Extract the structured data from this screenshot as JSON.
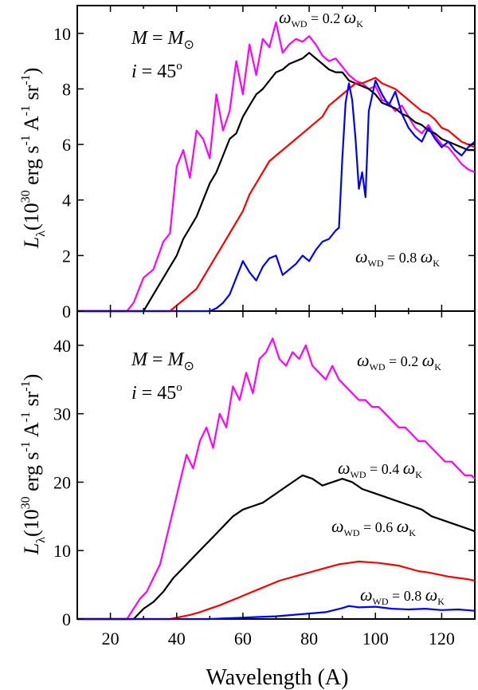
{
  "chart_data": [
    {
      "type": "line",
      "panel": "top",
      "ylabel_main": "L",
      "ylabel_sub": "λ",
      "ylabel_unit": "(10",
      "ylabel_unit_exp": "30",
      "ylabel_unit_rest": " erg s",
      "ylabel_unit_exp2": "-1",
      "ylabel_unit_rest2": " A",
      "ylabel_unit_exp3": "-1",
      "ylabel_unit_rest3": " sr",
      "ylabel_unit_exp4": "-1",
      "ylabel_unit_close": ")",
      "xlim": [
        10,
        130
      ],
      "ylim": [
        0,
        11
      ],
      "yticks": [
        "0",
        "2",
        "4",
        "6",
        "8",
        "10"
      ],
      "annotations": {
        "mass_left": "M",
        "mass_eq": " = ",
        "mass_right": "M",
        "mass_sub": "⊙",
        "incl_left": "i",
        "incl_eq": " = 45",
        "incl_sup": "o"
      },
      "labels": [
        {
          "omega": "ω",
          "sub": "WD",
          "text": " = 0.2 ",
          "omega2": "ω",
          "sub2": "K"
        },
        {
          "omega": "ω",
          "sub": "WD",
          "text": " = 0.8 ",
          "omega2": "ω",
          "sub2": "K"
        }
      ],
      "series": [
        {
          "name": "ω_WD = 0.2 ω_K",
          "color": "#ff00ff",
          "x": [
            10,
            25,
            27,
            30,
            33,
            36,
            38,
            40,
            42,
            44,
            46,
            48,
            50,
            52,
            54,
            56,
            58,
            60,
            62,
            64,
            66,
            68,
            70,
            72,
            74,
            76,
            78,
            80,
            82,
            84,
            86,
            88,
            90,
            92,
            94,
            96,
            98,
            100,
            102,
            104,
            106,
            108,
            110,
            112,
            114,
            116,
            118,
            120,
            122,
            124,
            126,
            128,
            130
          ],
          "y": [
            0,
            0,
            0.3,
            1.2,
            1.5,
            2.5,
            2.8,
            5.2,
            5.8,
            4.8,
            6.5,
            6.2,
            5.5,
            7.8,
            6.5,
            7.2,
            9.0,
            7.8,
            9.6,
            8.5,
            9.8,
            9.5,
            10.4,
            9.3,
            9.6,
            9.8,
            9.7,
            9.9,
            9.6,
            9.2,
            9.0,
            9.1,
            8.8,
            8.5,
            8.3,
            8.2,
            8.0,
            8.1,
            7.6,
            7.5,
            7.2,
            7.4,
            7.0,
            6.6,
            6.4,
            6.7,
            6.3,
            6.0,
            5.9,
            5.6,
            5.3,
            5.1,
            5.0
          ]
        },
        {
          "name": "ω_WD = 0.4 ω_K",
          "color": "#000000",
          "x": [
            10,
            30,
            32,
            34,
            36,
            38,
            40,
            42,
            44,
            46,
            48,
            50,
            52,
            54,
            56,
            58,
            60,
            62,
            64,
            66,
            68,
            70,
            72,
            74,
            76,
            78,
            80,
            82,
            84,
            86,
            88,
            90,
            92,
            94,
            96,
            98,
            100,
            102,
            104,
            106,
            108,
            110,
            112,
            114,
            116,
            118,
            120,
            122,
            124,
            126,
            128,
            130
          ],
          "y": [
            0,
            0,
            0.4,
            0.8,
            1.2,
            1.6,
            2.0,
            2.6,
            3.0,
            3.4,
            4.0,
            4.6,
            5.0,
            5.6,
            6.2,
            6.4,
            7.0,
            7.4,
            7.8,
            8.0,
            8.3,
            8.6,
            8.7,
            8.9,
            9.0,
            9.1,
            9.3,
            9.1,
            8.9,
            8.7,
            8.6,
            8.6,
            8.3,
            8.2,
            8.1,
            8.0,
            7.8,
            7.5,
            7.4,
            7.3,
            7.1,
            7.0,
            6.8,
            6.7,
            6.5,
            6.4,
            6.2,
            6.1,
            6.0,
            5.9,
            5.8,
            5.8
          ]
        },
        {
          "name": "ω_WD = 0.6 ω_K",
          "color": "#ff0000",
          "x": [
            10,
            38,
            40,
            42,
            44,
            46,
            48,
            50,
            52,
            54,
            56,
            58,
            60,
            62,
            64,
            66,
            68,
            70,
            72,
            74,
            76,
            78,
            80,
            82,
            84,
            86,
            88,
            90,
            92,
            94,
            96,
            98,
            100,
            102,
            104,
            106,
            108,
            110,
            112,
            114,
            116,
            118,
            120,
            122,
            124,
            126,
            128,
            130
          ],
          "y": [
            0,
            0,
            0.2,
            0.4,
            0.6,
            0.8,
            1.2,
            1.6,
            2.0,
            2.4,
            2.8,
            3.2,
            3.6,
            4.2,
            4.6,
            5.0,
            5.4,
            5.6,
            5.8,
            6.0,
            6.2,
            6.4,
            6.6,
            6.8,
            7.0,
            7.4,
            7.6,
            7.8,
            8.0,
            8.2,
            8.2,
            8.3,
            8.4,
            8.2,
            8.1,
            8.0,
            7.8,
            7.6,
            7.4,
            7.2,
            7.1,
            6.9,
            6.6,
            6.5,
            6.3,
            6.1,
            6.0,
            5.9
          ]
        },
        {
          "name": "ω_WD = 0.8 ω_K",
          "color": "#0000ff",
          "x": [
            10,
            50,
            52,
            54,
            56,
            58,
            60,
            62,
            64,
            66,
            68,
            70,
            72,
            74,
            76,
            78,
            80,
            82,
            84,
            86,
            88,
            89,
            90,
            91,
            92,
            93,
            94,
            95,
            96,
            97,
            98,
            100,
            102,
            104,
            106,
            108,
            110,
            112,
            114,
            116,
            118,
            120,
            122,
            124,
            126,
            128,
            130
          ],
          "y": [
            0,
            0,
            0.1,
            0.3,
            0.6,
            1.2,
            1.8,
            1.4,
            1.1,
            1.6,
            1.9,
            2.0,
            1.3,
            1.5,
            1.7,
            2.0,
            1.8,
            2.2,
            2.5,
            2.6,
            2.9,
            3.0,
            5.5,
            7.5,
            8.2,
            7.6,
            6.2,
            4.4,
            5.0,
            4.1,
            7.2,
            8.3,
            7.8,
            7.4,
            7.9,
            7.1,
            6.6,
            6.3,
            6.1,
            6.6,
            6.2,
            5.9,
            6.1,
            5.8,
            5.6,
            5.9,
            6.1
          ]
        }
      ]
    },
    {
      "type": "line",
      "panel": "bottom",
      "xlabel": "Wavelength (A)",
      "xlim": [
        10,
        130
      ],
      "ylim": [
        0,
        45
      ],
      "xticks": [
        "20",
        "40",
        "60",
        "80",
        "100",
        "120"
      ],
      "yticks": [
        "0",
        "10",
        "20",
        "30",
        "40"
      ],
      "labels": [
        {
          "omega": "ω",
          "sub": "WD",
          "text": " = 0.2 ",
          "omega2": "ω",
          "sub2": "K"
        },
        {
          "omega": "ω",
          "sub": "WD",
          "text": " = 0.4 ",
          "omega2": "ω",
          "sub2": "K"
        },
        {
          "omega": "ω",
          "sub": "WD",
          "text": " = 0.6 ",
          "omega2": "ω",
          "sub2": "K"
        },
        {
          "omega": "ω",
          "sub": "WD",
          "text": " = 0.8 ",
          "omega2": "ω",
          "sub2": "K"
        }
      ],
      "series": [
        {
          "name": "ω_WD = 0.2 ω_K",
          "color": "#ff00ff",
          "x": [
            10,
            25,
            27,
            29,
            31,
            33,
            35,
            37,
            39,
            41,
            43,
            45,
            47,
            49,
            51,
            53,
            55,
            57,
            59,
            61,
            63,
            65,
            67,
            69,
            71,
            73,
            75,
            77,
            79,
            81,
            83,
            85,
            87,
            89,
            91,
            93,
            95,
            97,
            99,
            101,
            103,
            105,
            107,
            109,
            111,
            113,
            115,
            117,
            119,
            121,
            123,
            125,
            127,
            129,
            130
          ],
          "y": [
            0,
            0,
            1.5,
            3,
            4,
            6,
            8,
            12,
            16,
            20,
            24,
            22,
            26,
            28,
            25,
            30,
            28,
            34,
            32,
            36,
            33,
            38,
            39,
            41,
            38,
            37,
            39,
            38,
            40,
            37,
            36,
            35,
            37,
            35,
            34,
            33,
            32,
            32,
            31,
            31,
            30,
            29,
            28,
            28,
            27,
            26,
            26,
            25,
            24,
            23,
            23,
            22,
            21,
            21,
            20.5
          ]
        },
        {
          "name": "ω_WD = 0.4 ω_K",
          "color": "#000000",
          "x": [
            10,
            27,
            30,
            33,
            36,
            39,
            42,
            45,
            48,
            51,
            54,
            57,
            60,
            63,
            66,
            69,
            72,
            75,
            78,
            81,
            84,
            87,
            90,
            93,
            96,
            99,
            102,
            105,
            108,
            111,
            114,
            117,
            120,
            123,
            126,
            129,
            130
          ],
          "y": [
            0,
            0,
            1.5,
            2.5,
            4,
            6,
            7.5,
            9,
            10.5,
            12,
            13.5,
            15,
            16,
            16.5,
            17,
            18,
            19,
            20,
            21,
            20.5,
            19.5,
            20,
            20.5,
            20,
            19,
            18.5,
            18,
            17.5,
            17,
            16.5,
            16,
            15,
            14.5,
            14,
            13.5,
            13,
            12.8
          ]
        },
        {
          "name": "ω_WD = 0.6 ω_K",
          "color": "#ff0000",
          "x": [
            10,
            38,
            41,
            44,
            47,
            50,
            53,
            56,
            59,
            62,
            65,
            68,
            71,
            74,
            77,
            80,
            83,
            86,
            89,
            92,
            95,
            98,
            101,
            104,
            107,
            110,
            113,
            116,
            119,
            122,
            125,
            128,
            130
          ],
          "y": [
            0,
            0,
            0.3,
            0.6,
            1.0,
            1.5,
            2,
            2.6,
            3.2,
            3.8,
            4.4,
            5,
            5.6,
            6,
            6.4,
            6.8,
            7.2,
            7.6,
            8,
            8.2,
            8.4,
            8.3,
            8.2,
            8,
            7.8,
            7.4,
            7,
            6.8,
            6.5,
            6.2,
            6,
            5.8,
            5.6
          ]
        },
        {
          "name": "ω_WD = 0.8 ω_K",
          "color": "#0000ff",
          "x": [
            10,
            50,
            55,
            60,
            65,
            70,
            75,
            80,
            85,
            90,
            92,
            95,
            100,
            105,
            110,
            115,
            120,
            125,
            130
          ],
          "y": [
            0,
            0,
            0.1,
            0.2,
            0.3,
            0.4,
            0.6,
            0.8,
            1.0,
            1.6,
            1.9,
            1.7,
            1.8,
            1.5,
            1.4,
            1.5,
            1.3,
            1.4,
            1.2
          ]
        }
      ]
    }
  ]
}
